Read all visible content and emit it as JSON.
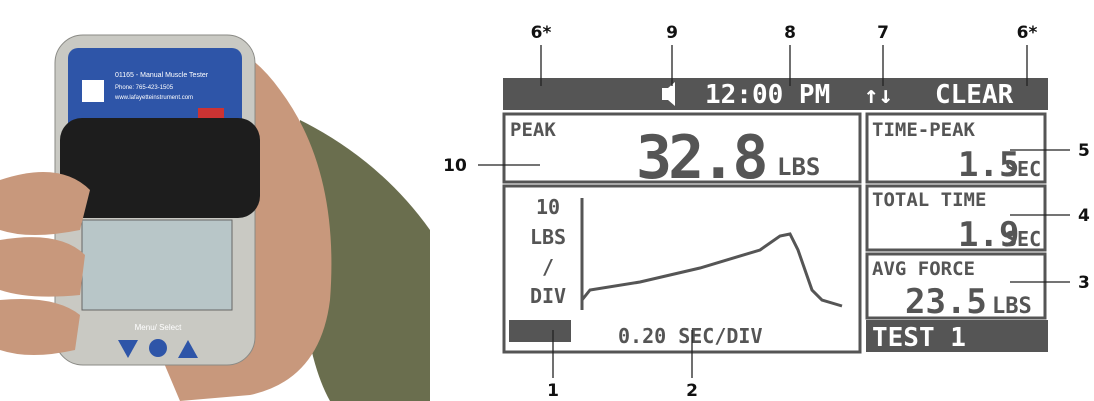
{
  "photo": {
    "brand_line": "01165 - Manual Muscle Tester",
    "phone": "Phone: 765-423-1505",
    "website": "www.lafayetteinstrument.com",
    "button_label": "Menu/ Select"
  },
  "lcd": {
    "status_bar": {
      "time": "12:00 PM",
      "arrows": "↑↓",
      "clear": "CLEAR"
    },
    "peak": {
      "label": "PEAK",
      "value": "32.8",
      "unit": "LBS"
    },
    "time_peak": {
      "label": "TIME-PEAK",
      "value": "1.5",
      "unit": "SEC"
    },
    "total_time": {
      "label": "TOTAL TIME",
      "value": "1.9",
      "unit": "SEC"
    },
    "avg_force": {
      "label": "AVG FORCE",
      "value": "23.5",
      "unit": "LBS"
    },
    "test": "TEST 1",
    "graph": {
      "y_scale": [
        "10",
        "LBS",
        "/",
        "DIV"
      ],
      "x_scale": "0.20 SEC/DIV"
    }
  },
  "callouts": [
    "6*",
    "9",
    "8",
    "7",
    "6*",
    "5",
    "4",
    "3",
    "10",
    "1",
    "2"
  ]
}
